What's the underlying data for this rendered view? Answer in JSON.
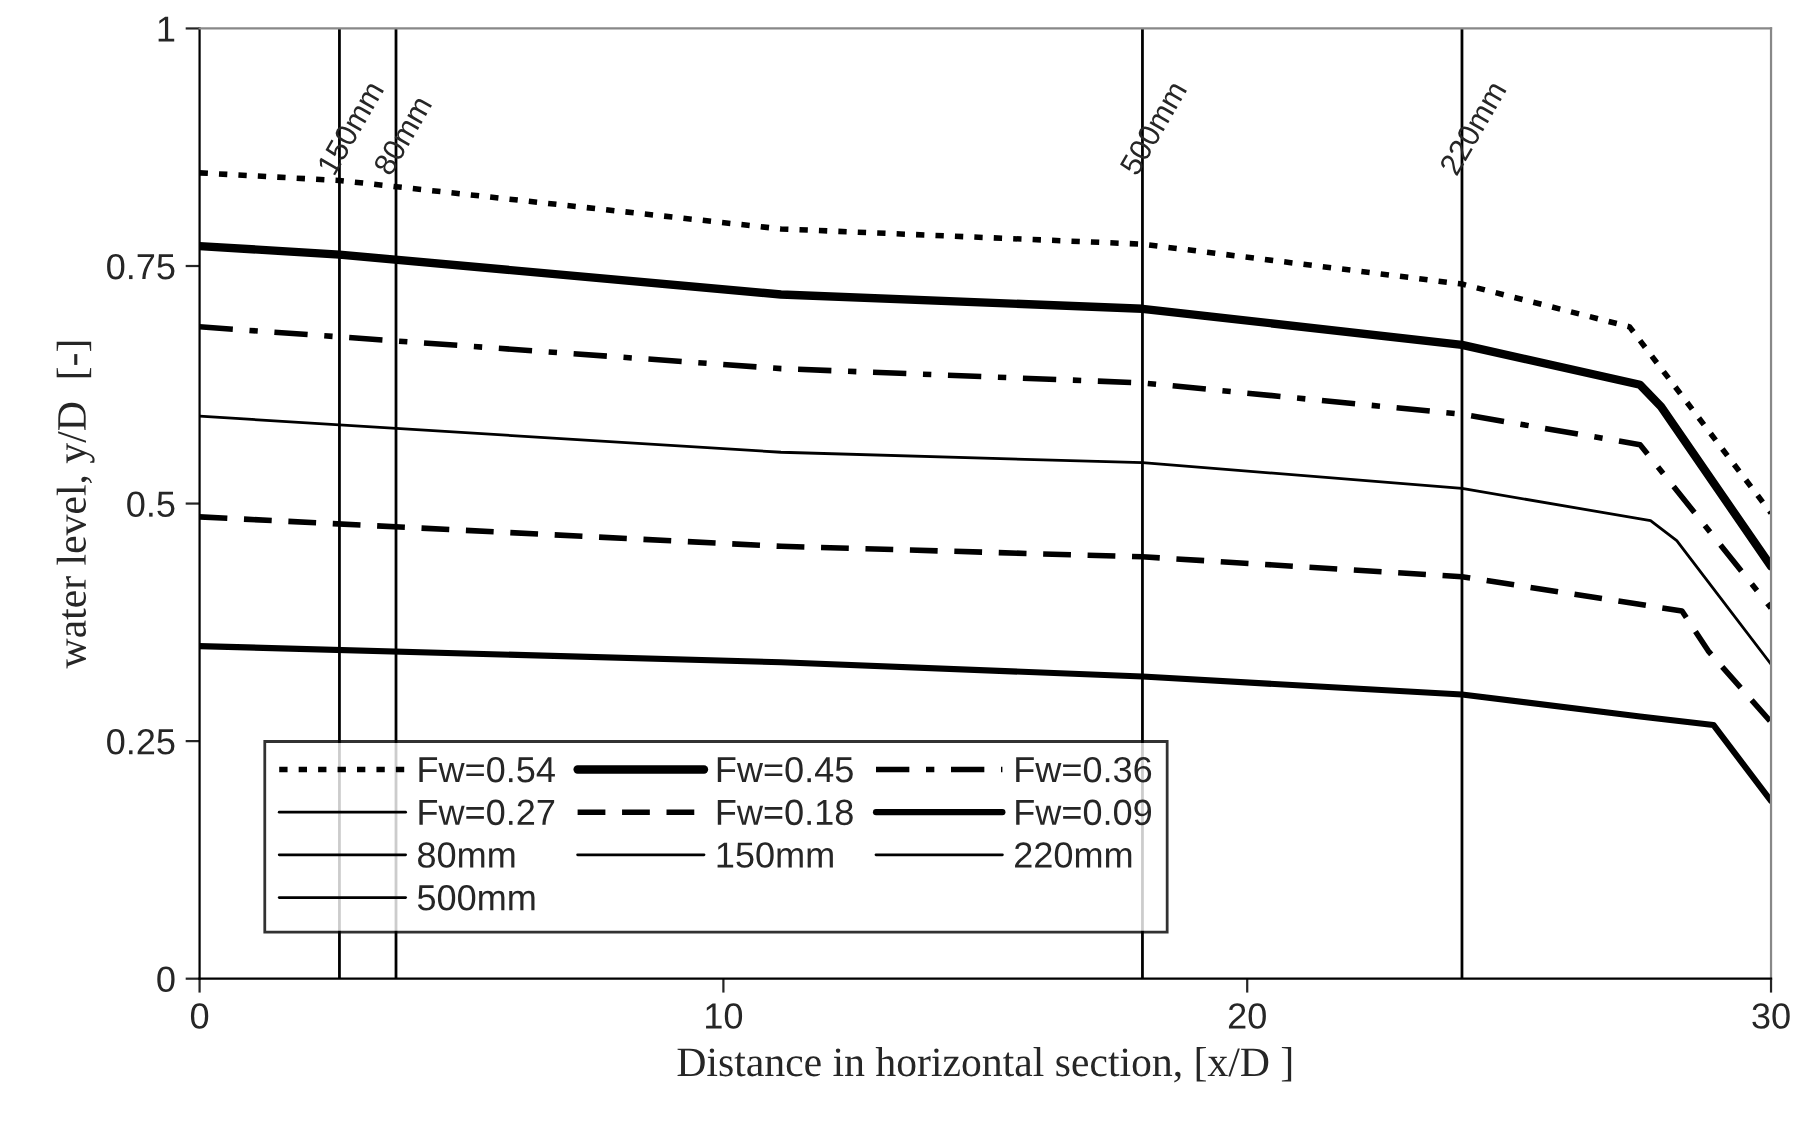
{
  "chart_data": {
    "type": "line",
    "xlabel": "Distance in horizontal section, [x/D ]",
    "ylabel": "water level, y/D  [-]",
    "xlim": [
      0,
      30
    ],
    "xticks": [
      0,
      10,
      20,
      30
    ],
    "ylim": [
      0,
      1
    ],
    "yticks": [
      0,
      0.25,
      0.5,
      0.75,
      1
    ],
    "grid": false,
    "legend": "bottom left",
    "marker": "none",
    "series": [
      {
        "name": "Fw=0.54",
        "color": "#000000",
        "line_style": "dotted",
        "x": [
          0,
          2.67,
          11.1,
          18,
          24.1,
          27.3,
          30
        ],
        "values": [
          0.848,
          0.84,
          0.789,
          0.773,
          0.731,
          0.686,
          0.49
        ]
      },
      {
        "name": "Fw=0.45",
        "color": "#000000",
        "line_style": "solid",
        "x": [
          0,
          2.67,
          11.1,
          18,
          24.1,
          27.5,
          27.9,
          30
        ],
        "values": [
          0.771,
          0.762,
          0.72,
          0.705,
          0.667,
          0.625,
          0.602,
          0.434
        ]
      },
      {
        "name": "Fw=0.36",
        "color": "#000000",
        "line_style": "dashdot",
        "x": [
          0,
          11.1,
          18,
          24.1,
          27.5,
          30
        ],
        "values": [
          0.686,
          0.642,
          0.627,
          0.594,
          0.562,
          0.39
        ]
      },
      {
        "name": "Fw=0.27",
        "color": "#000000",
        "line_style": "solid",
        "x": [
          0,
          11.1,
          18,
          24.1,
          27.7,
          28.2,
          30
        ],
        "values": [
          0.592,
          0.554,
          0.543,
          0.516,
          0.482,
          0.461,
          0.331
        ]
      },
      {
        "name": "Fw=0.18",
        "color": "#000000",
        "line_style": "dashed",
        "x": [
          0,
          11.1,
          18,
          24.1,
          28.3,
          28.8,
          30
        ],
        "values": [
          0.486,
          0.455,
          0.444,
          0.423,
          0.387,
          0.345,
          0.27
        ]
      },
      {
        "name": "Fw=0.09",
        "color": "#000000",
        "line_style": "solid",
        "x": [
          0,
          11.1,
          18,
          24.1,
          27.5,
          28.9,
          30
        ],
        "values": [
          0.35,
          0.333,
          0.318,
          0.299,
          0.276,
          0.267,
          0.187
        ]
      }
    ],
    "ref_lines": [
      {
        "axis": "x",
        "value": 3.75,
        "label": "80mm",
        "color": "#000000"
      },
      {
        "axis": "x",
        "value": 2.67,
        "label": "150mm",
        "color": "#000000"
      },
      {
        "axis": "x",
        "value": 24.1,
        "label": "220mm",
        "color": "#000000"
      },
      {
        "axis": "x",
        "value": 18.0,
        "label": "500mm",
        "color": "#000000"
      }
    ]
  }
}
